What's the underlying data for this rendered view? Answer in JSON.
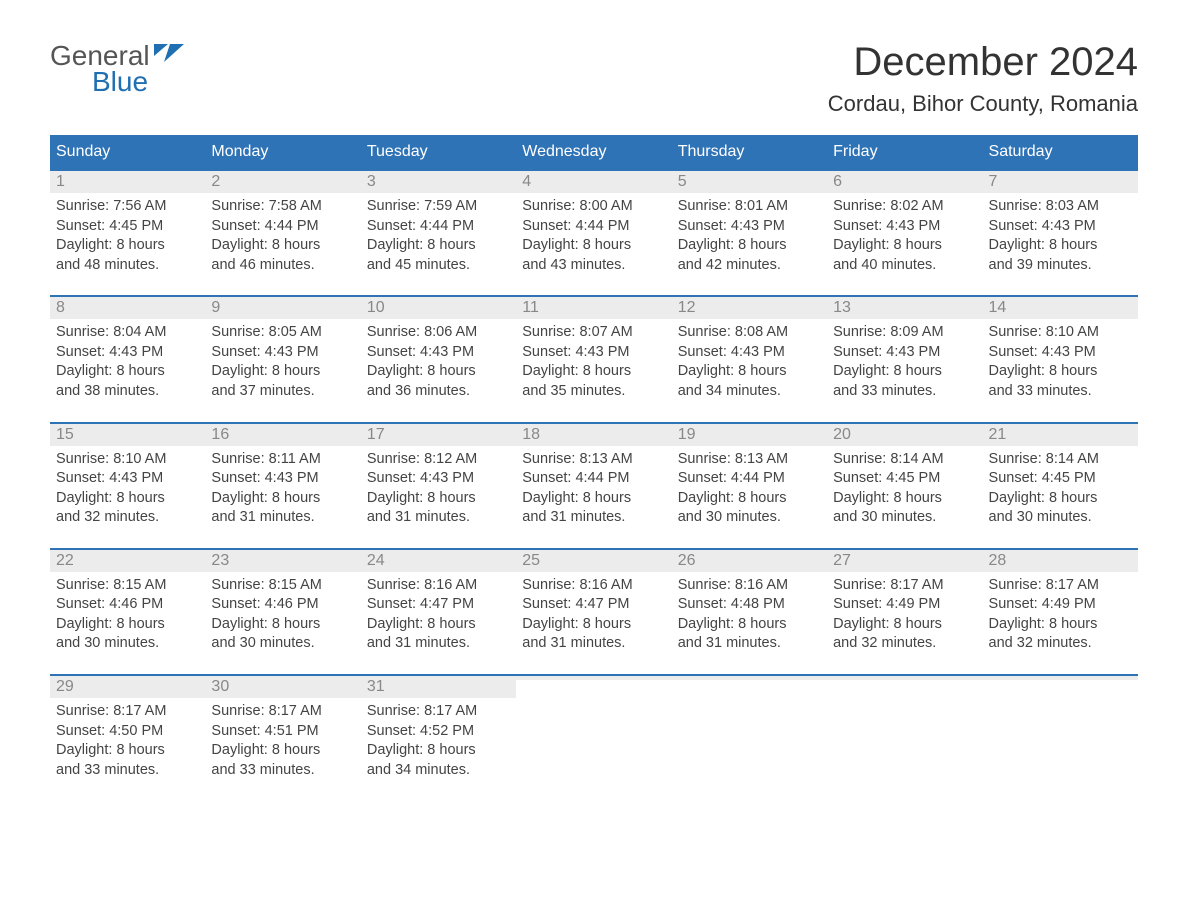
{
  "logo": {
    "text_general": "General",
    "text_blue": "Blue"
  },
  "title": "December 2024",
  "location": "Cordau, Bihor County, Romania",
  "colors": {
    "header_bg": "#2f73b7",
    "header_text": "#ffffff",
    "row_divider": "#2f73b7",
    "daynum_bg": "#ececec",
    "daynum_color": "#888888",
    "body_text": "#444444",
    "logo_general": "#555555",
    "logo_blue": "#1f6fb2",
    "background": "#ffffff"
  },
  "typography": {
    "title_fontsize": 40,
    "location_fontsize": 22,
    "dayhead_fontsize": 16,
    "daynum_fontsize": 16,
    "cell_fontsize": 14.5,
    "logo_fontsize": 28,
    "font_family": "Arial"
  },
  "day_headers": [
    "Sunday",
    "Monday",
    "Tuesday",
    "Wednesday",
    "Thursday",
    "Friday",
    "Saturday"
  ],
  "weeks": [
    [
      {
        "day": "1",
        "sunrise": "Sunrise: 7:56 AM",
        "sunset": "Sunset: 4:45 PM",
        "dl1": "Daylight: 8 hours",
        "dl2": "and 48 minutes."
      },
      {
        "day": "2",
        "sunrise": "Sunrise: 7:58 AM",
        "sunset": "Sunset: 4:44 PM",
        "dl1": "Daylight: 8 hours",
        "dl2": "and 46 minutes."
      },
      {
        "day": "3",
        "sunrise": "Sunrise: 7:59 AM",
        "sunset": "Sunset: 4:44 PM",
        "dl1": "Daylight: 8 hours",
        "dl2": "and 45 minutes."
      },
      {
        "day": "4",
        "sunrise": "Sunrise: 8:00 AM",
        "sunset": "Sunset: 4:44 PM",
        "dl1": "Daylight: 8 hours",
        "dl2": "and 43 minutes."
      },
      {
        "day": "5",
        "sunrise": "Sunrise: 8:01 AM",
        "sunset": "Sunset: 4:43 PM",
        "dl1": "Daylight: 8 hours",
        "dl2": "and 42 minutes."
      },
      {
        "day": "6",
        "sunrise": "Sunrise: 8:02 AM",
        "sunset": "Sunset: 4:43 PM",
        "dl1": "Daylight: 8 hours",
        "dl2": "and 40 minutes."
      },
      {
        "day": "7",
        "sunrise": "Sunrise: 8:03 AM",
        "sunset": "Sunset: 4:43 PM",
        "dl1": "Daylight: 8 hours",
        "dl2": "and 39 minutes."
      }
    ],
    [
      {
        "day": "8",
        "sunrise": "Sunrise: 8:04 AM",
        "sunset": "Sunset: 4:43 PM",
        "dl1": "Daylight: 8 hours",
        "dl2": "and 38 minutes."
      },
      {
        "day": "9",
        "sunrise": "Sunrise: 8:05 AM",
        "sunset": "Sunset: 4:43 PM",
        "dl1": "Daylight: 8 hours",
        "dl2": "and 37 minutes."
      },
      {
        "day": "10",
        "sunrise": "Sunrise: 8:06 AM",
        "sunset": "Sunset: 4:43 PM",
        "dl1": "Daylight: 8 hours",
        "dl2": "and 36 minutes."
      },
      {
        "day": "11",
        "sunrise": "Sunrise: 8:07 AM",
        "sunset": "Sunset: 4:43 PM",
        "dl1": "Daylight: 8 hours",
        "dl2": "and 35 minutes."
      },
      {
        "day": "12",
        "sunrise": "Sunrise: 8:08 AM",
        "sunset": "Sunset: 4:43 PM",
        "dl1": "Daylight: 8 hours",
        "dl2": "and 34 minutes."
      },
      {
        "day": "13",
        "sunrise": "Sunrise: 8:09 AM",
        "sunset": "Sunset: 4:43 PM",
        "dl1": "Daylight: 8 hours",
        "dl2": "and 33 minutes."
      },
      {
        "day": "14",
        "sunrise": "Sunrise: 8:10 AM",
        "sunset": "Sunset: 4:43 PM",
        "dl1": "Daylight: 8 hours",
        "dl2": "and 33 minutes."
      }
    ],
    [
      {
        "day": "15",
        "sunrise": "Sunrise: 8:10 AM",
        "sunset": "Sunset: 4:43 PM",
        "dl1": "Daylight: 8 hours",
        "dl2": "and 32 minutes."
      },
      {
        "day": "16",
        "sunrise": "Sunrise: 8:11 AM",
        "sunset": "Sunset: 4:43 PM",
        "dl1": "Daylight: 8 hours",
        "dl2": "and 31 minutes."
      },
      {
        "day": "17",
        "sunrise": "Sunrise: 8:12 AM",
        "sunset": "Sunset: 4:43 PM",
        "dl1": "Daylight: 8 hours",
        "dl2": "and 31 minutes."
      },
      {
        "day": "18",
        "sunrise": "Sunrise: 8:13 AM",
        "sunset": "Sunset: 4:44 PM",
        "dl1": "Daylight: 8 hours",
        "dl2": "and 31 minutes."
      },
      {
        "day": "19",
        "sunrise": "Sunrise: 8:13 AM",
        "sunset": "Sunset: 4:44 PM",
        "dl1": "Daylight: 8 hours",
        "dl2": "and 30 minutes."
      },
      {
        "day": "20",
        "sunrise": "Sunrise: 8:14 AM",
        "sunset": "Sunset: 4:45 PM",
        "dl1": "Daylight: 8 hours",
        "dl2": "and 30 minutes."
      },
      {
        "day": "21",
        "sunrise": "Sunrise: 8:14 AM",
        "sunset": "Sunset: 4:45 PM",
        "dl1": "Daylight: 8 hours",
        "dl2": "and 30 minutes."
      }
    ],
    [
      {
        "day": "22",
        "sunrise": "Sunrise: 8:15 AM",
        "sunset": "Sunset: 4:46 PM",
        "dl1": "Daylight: 8 hours",
        "dl2": "and 30 minutes."
      },
      {
        "day": "23",
        "sunrise": "Sunrise: 8:15 AM",
        "sunset": "Sunset: 4:46 PM",
        "dl1": "Daylight: 8 hours",
        "dl2": "and 30 minutes."
      },
      {
        "day": "24",
        "sunrise": "Sunrise: 8:16 AM",
        "sunset": "Sunset: 4:47 PM",
        "dl1": "Daylight: 8 hours",
        "dl2": "and 31 minutes."
      },
      {
        "day": "25",
        "sunrise": "Sunrise: 8:16 AM",
        "sunset": "Sunset: 4:47 PM",
        "dl1": "Daylight: 8 hours",
        "dl2": "and 31 minutes."
      },
      {
        "day": "26",
        "sunrise": "Sunrise: 8:16 AM",
        "sunset": "Sunset: 4:48 PM",
        "dl1": "Daylight: 8 hours",
        "dl2": "and 31 minutes."
      },
      {
        "day": "27",
        "sunrise": "Sunrise: 8:17 AM",
        "sunset": "Sunset: 4:49 PM",
        "dl1": "Daylight: 8 hours",
        "dl2": "and 32 minutes."
      },
      {
        "day": "28",
        "sunrise": "Sunrise: 8:17 AM",
        "sunset": "Sunset: 4:49 PM",
        "dl1": "Daylight: 8 hours",
        "dl2": "and 32 minutes."
      }
    ],
    [
      {
        "day": "29",
        "sunrise": "Sunrise: 8:17 AM",
        "sunset": "Sunset: 4:50 PM",
        "dl1": "Daylight: 8 hours",
        "dl2": "and 33 minutes."
      },
      {
        "day": "30",
        "sunrise": "Sunrise: 8:17 AM",
        "sunset": "Sunset: 4:51 PM",
        "dl1": "Daylight: 8 hours",
        "dl2": "and 33 minutes."
      },
      {
        "day": "31",
        "sunrise": "Sunrise: 8:17 AM",
        "sunset": "Sunset: 4:52 PM",
        "dl1": "Daylight: 8 hours",
        "dl2": "and 34 minutes."
      },
      {
        "empty": true
      },
      {
        "empty": true
      },
      {
        "empty": true
      },
      {
        "empty": true
      }
    ]
  ]
}
